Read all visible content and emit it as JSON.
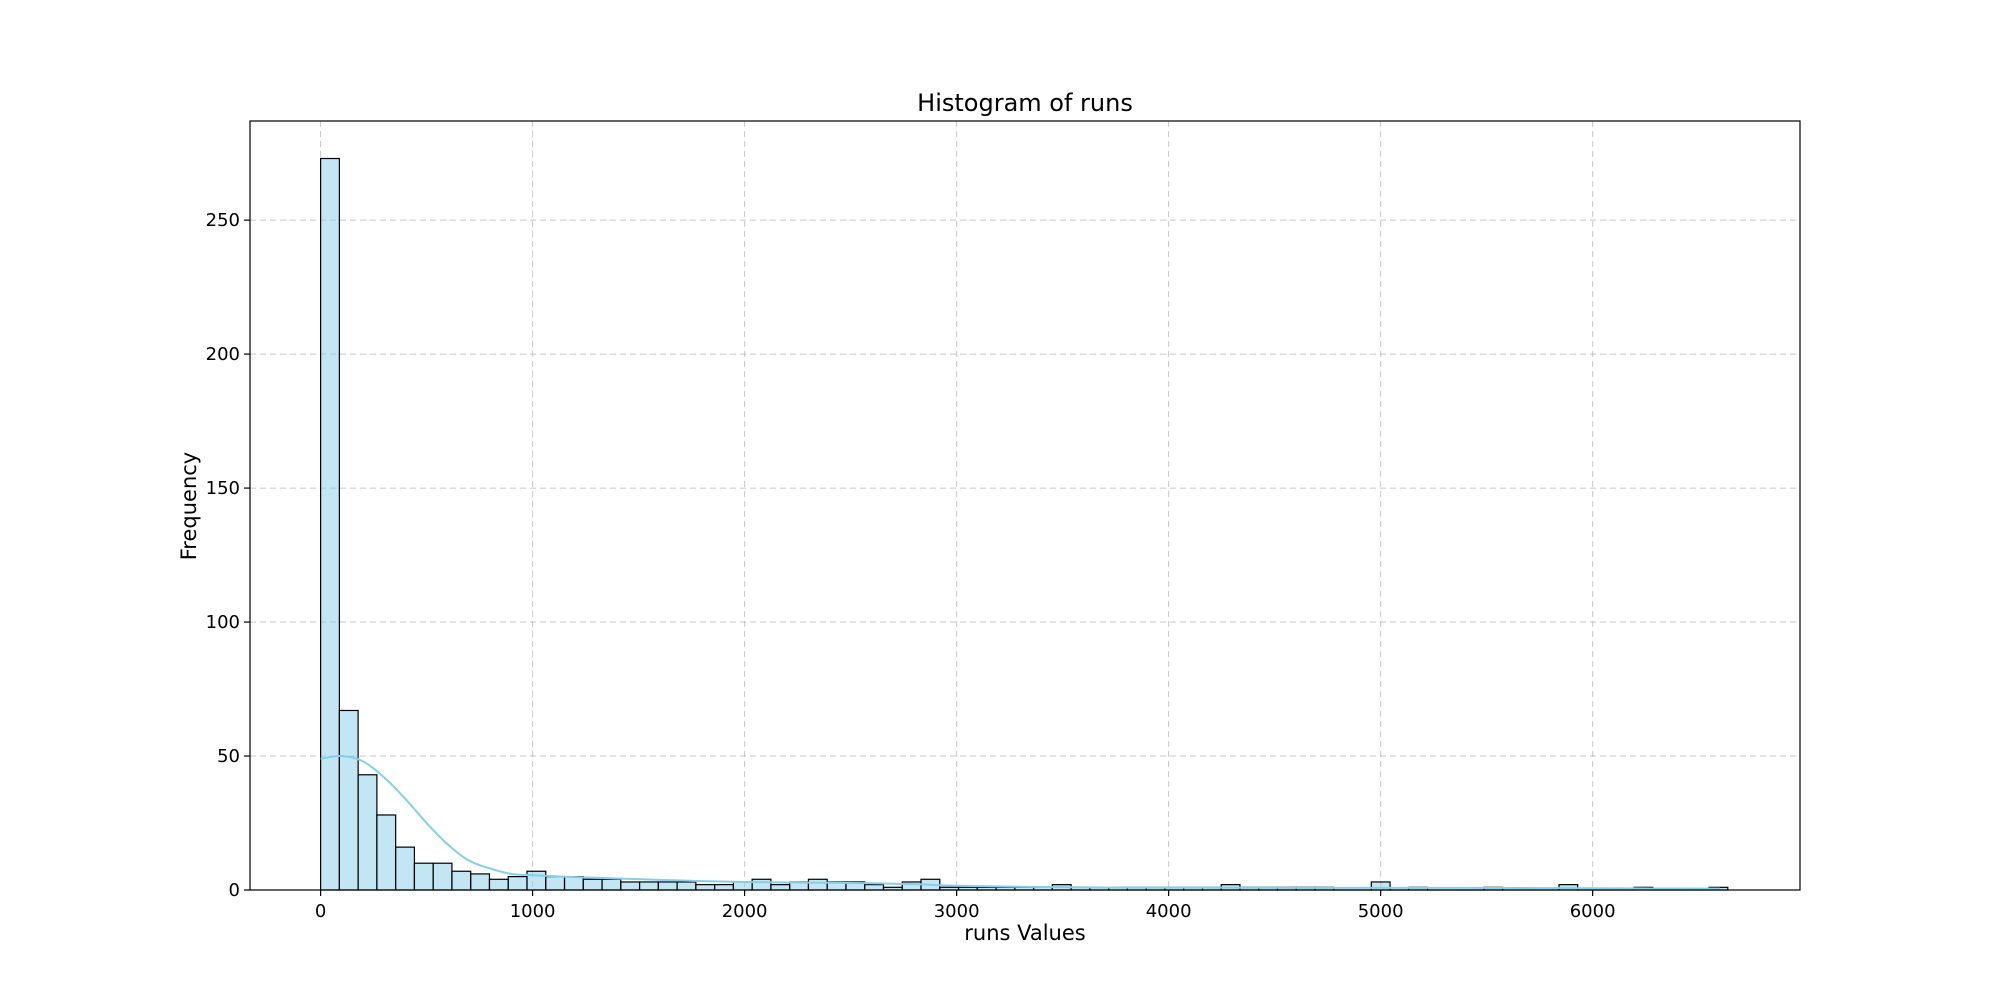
{
  "chart_data": {
    "type": "bar",
    "title": "Histogram of runs",
    "xlabel": "runs Values",
    "ylabel": "Frequency",
    "xlim": [
      -333,
      6978
    ],
    "ylim": [
      0,
      287
    ],
    "xticks": [
      0,
      1000,
      2000,
      3000,
      4000,
      5000,
      6000
    ],
    "yticks": [
      0,
      50,
      100,
      150,
      200,
      250
    ],
    "grid": true,
    "bin_width": 88.5,
    "bin_start": 0,
    "series": [
      {
        "values": [
          273,
          67,
          43,
          28,
          16,
          10,
          10,
          7,
          6,
          4,
          5,
          7,
          5,
          5,
          4,
          4,
          3,
          3,
          3,
          3,
          2,
          2,
          3,
          4,
          2,
          3,
          4,
          3,
          3,
          2,
          1,
          3,
          4,
          1,
          1,
          1,
          1,
          1,
          1,
          2,
          1,
          1,
          1,
          1,
          1,
          1,
          1,
          1,
          2,
          1,
          1,
          1,
          1,
          1,
          0,
          0,
          3,
          0,
          1,
          0,
          0,
          0,
          1,
          0,
          0,
          0,
          2,
          0,
          0,
          0,
          1,
          0,
          0,
          0,
          1
        ]
      }
    ],
    "kde": {
      "x": [
        0,
        100,
        200,
        300,
        400,
        500,
        600,
        700,
        800,
        900,
        1000,
        1200,
        1400,
        1600,
        1800,
        2000,
        2200,
        2400,
        2600,
        2800,
        3000,
        3400,
        3800,
        4200,
        4600,
        5000,
        5400,
        5800,
        6200,
        6600
      ],
      "y": [
        49,
        50,
        48,
        42,
        34,
        25,
        17,
        11,
        8,
        6,
        5.5,
        4.8,
        4.3,
        3.8,
        3.3,
        3,
        2.8,
        2.7,
        2.5,
        2.2,
        1.6,
        1.1,
        0.9,
        0.9,
        0.8,
        0.8,
        0.8,
        0.7,
        0.6,
        0.5
      ]
    },
    "colors": {
      "bar_fill": "#87ceeb",
      "bar_fill_opacity": 0.5,
      "bar_edge": "#000000",
      "kde_line": "#87ceeb",
      "grid": "#b0b0b0"
    }
  }
}
